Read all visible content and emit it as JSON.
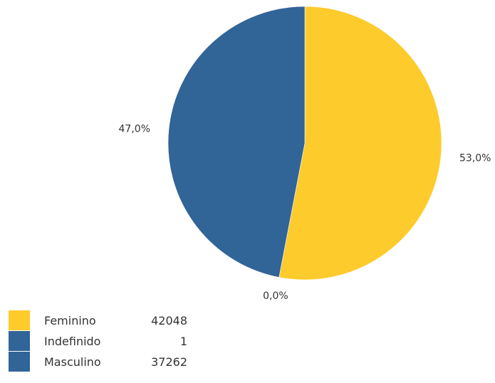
{
  "chart_data": {
    "type": "pie",
    "categories": [
      "Feminino",
      "Indefinido",
      "Masculino"
    ],
    "values": [
      42048,
      1,
      37262
    ],
    "percent_labels": [
      "53,0%",
      "0,0%",
      "47,0%"
    ],
    "colors": [
      "#FDCB2B",
      "#316497",
      "#316497"
    ],
    "legend_position": "bottom-left",
    "start": "top",
    "direction": "clockwise"
  }
}
